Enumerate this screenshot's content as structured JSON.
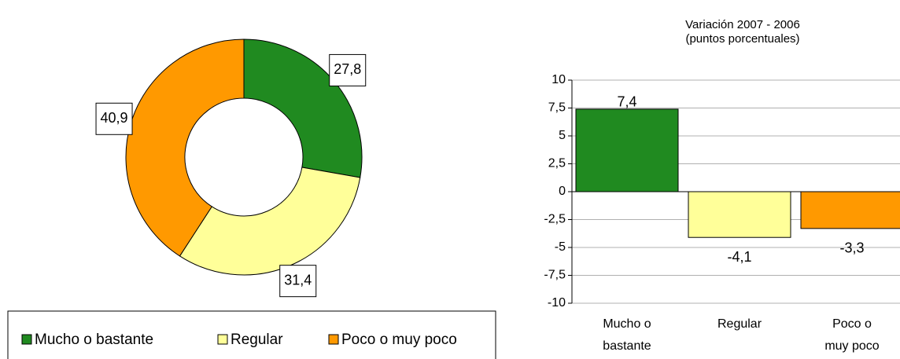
{
  "chart_data": [
    {
      "type": "donut",
      "categories": [
        "Mucho o bastante",
        "Regular",
        "Poco o muy poco"
      ],
      "values": [
        27.8,
        31.4,
        40.9
      ],
      "value_labels": [
        "27,8",
        "31,4",
        "40,9"
      ],
      "colors": [
        "#208a20",
        "#ffff99",
        "#ff9900"
      ],
      "legend": "bottom"
    },
    {
      "type": "bar",
      "title": "Variación 2007 - 2006",
      "subtitle": "(puntos porcentuales)",
      "categories": [
        "Mucho o bastante",
        "Regular",
        "Poco o muy poco"
      ],
      "values": [
        7.4,
        -4.1,
        -3.3
      ],
      "value_labels": [
        "7,4",
        "-4,1",
        "-3,3"
      ],
      "colors": [
        "#208a20",
        "#ffff99",
        "#ff9900"
      ],
      "ylim": [
        -10,
        10
      ],
      "yticks": [
        10,
        {
          "value": 7.5,
          "label": "7,5"
        },
        5,
        {
          "value": 2.5,
          "label": "2,5"
        },
        0,
        {
          "value": -2.5,
          "label": "-2,5"
        },
        -5,
        {
          "value": -7.5,
          "label": "-7,5"
        },
        -10
      ],
      "grid": true
    }
  ]
}
